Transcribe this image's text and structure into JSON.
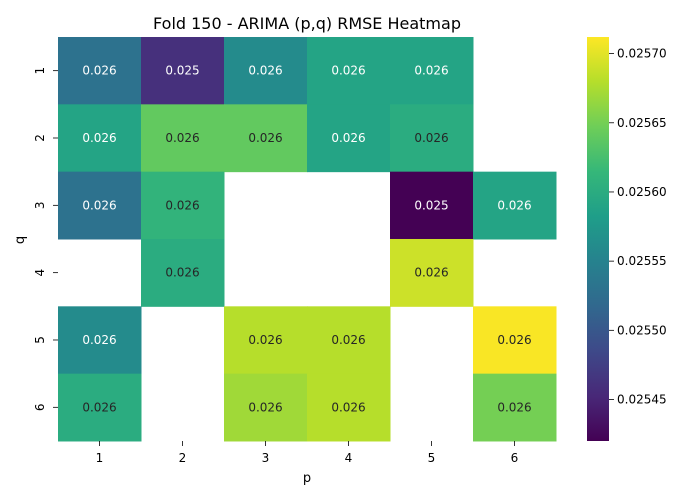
{
  "chart_data": {
    "type": "heatmap",
    "title": "Fold 150 - ARIMA (p,q) RMSE Heatmap",
    "xlabel": "p",
    "ylabel": "q",
    "x": [
      "1",
      "2",
      "3",
      "4",
      "5",
      "6"
    ],
    "y": [
      "1",
      "2",
      "3",
      "4",
      "5",
      "6"
    ],
    "colormap": "viridis",
    "annotation_format": "0.3f",
    "values": [
      [
        0.02553,
        0.02546,
        0.02556,
        0.02559,
        0.02559,
        null
      ],
      [
        0.02559,
        0.02564,
        0.02564,
        0.02559,
        0.0256,
        null
      ],
      [
        0.02553,
        0.02561,
        null,
        null,
        0.02542,
        0.02559
      ],
      [
        null,
        0.0256,
        null,
        null,
        0.02569,
        null
      ],
      [
        0.02556,
        null,
        0.02568,
        0.02568,
        null,
        0.02571
      ],
      [
        0.0256,
        null,
        0.02567,
        0.02568,
        null,
        0.02565
      ]
    ],
    "cell_labels": [
      [
        "0.026",
        "0.025",
        "0.026",
        "0.026",
        "0.026",
        ""
      ],
      [
        "0.026",
        "0.026",
        "0.026",
        "0.026",
        "0.026",
        ""
      ],
      [
        "0.026",
        "0.026",
        "",
        "",
        "0.025",
        "0.026"
      ],
      [
        "",
        "0.026",
        "",
        "",
        "0.026",
        ""
      ],
      [
        "0.026",
        "",
        "0.026",
        "0.026",
        "",
        "0.026"
      ],
      [
        "0.026",
        "",
        "0.026",
        "0.026",
        "",
        "0.026"
      ]
    ],
    "colorbar": {
      "range": [
        0.02542,
        0.025712
      ],
      "ticks": [
        0.02545,
        0.0255,
        0.02555,
        0.0256,
        0.02565,
        0.0257
      ],
      "tick_labels": [
        "0.02545",
        "0.02550",
        "0.02555",
        "0.02560",
        "0.02565",
        "0.02570"
      ]
    },
    "grid": false,
    "legend": "colorbar-right"
  }
}
